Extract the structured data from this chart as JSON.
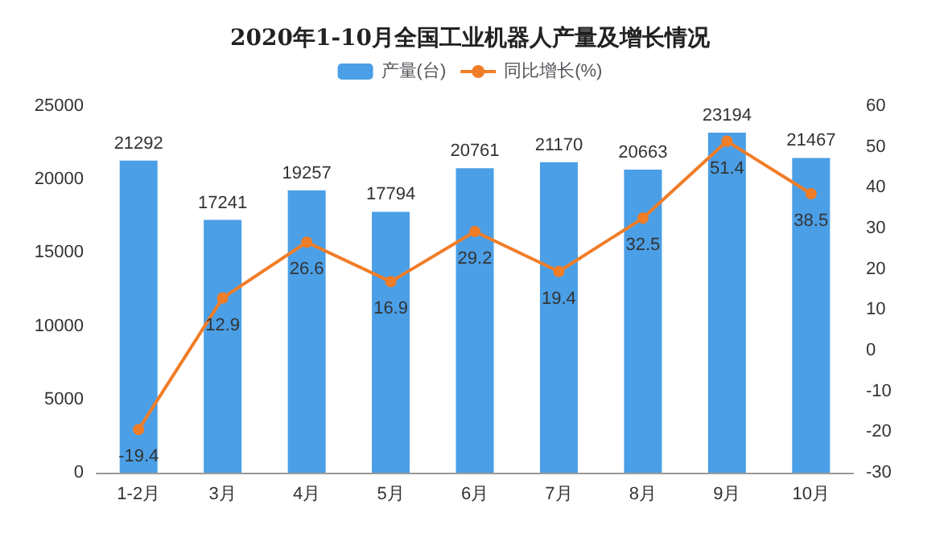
{
  "chart_data": {
    "type": "bar",
    "title": "2020年1-10月全国工业机器人产量及增长情况",
    "categories": [
      "1-2月",
      "3月",
      "4月",
      "5月",
      "6月",
      "7月",
      "8月",
      "9月",
      "10月"
    ],
    "series": [
      {
        "name": "产量(台)",
        "color": "#4b9fe6",
        "values": [
          21292,
          17241,
          19257,
          17794,
          20761,
          21170,
          20663,
          23194,
          21467
        ]
      },
      {
        "name": "同比增长(%)",
        "type": "line",
        "axis": "y2",
        "color": "#f07d28",
        "values": [
          -19.4,
          12.9,
          26.6,
          16.9,
          29.2,
          19.4,
          32.5,
          51.4,
          38.5
        ]
      }
    ],
    "ylim": [
      0,
      25000
    ],
    "yticks": [
      0,
      5000,
      10000,
      15000,
      20000,
      25000
    ],
    "y2lim": [
      -30,
      60
    ],
    "y2ticks": [
      -30,
      -20,
      -10,
      0,
      10,
      20,
      30,
      40,
      50,
      60
    ],
    "legend": "top",
    "data_labels": true,
    "marker": "circle"
  }
}
